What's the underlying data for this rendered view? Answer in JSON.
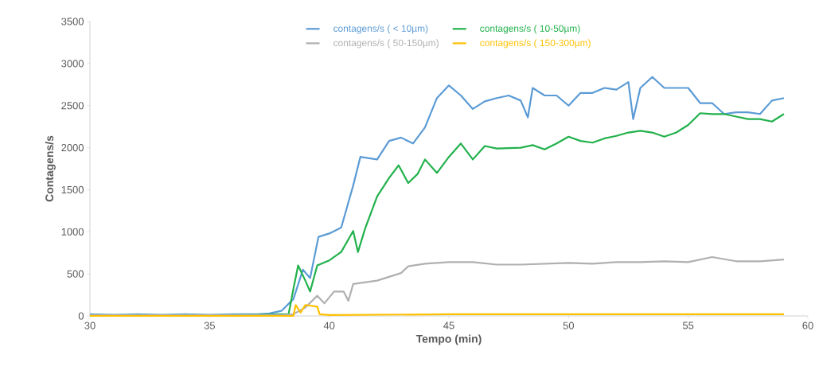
{
  "chart_data": {
    "type": "line",
    "xlabel": "Tempo (min)",
    "ylabel": "Contagens/s",
    "xlim": [
      30,
      60
    ],
    "xticks": [
      30,
      35,
      40,
      45,
      50,
      55,
      60
    ],
    "ylim": [
      0,
      3500
    ],
    "yticks": [
      0,
      500,
      1000,
      1500,
      2000,
      2500,
      3000,
      3500
    ],
    "legend": "top",
    "series": [
      {
        "name": "contagens/s ( < 10µm)",
        "color": "#5b9bd5",
        "x": [
          30,
          31,
          32,
          33,
          34,
          35,
          36,
          37,
          37.5,
          38,
          38.5,
          38.9,
          39.2,
          39.55,
          40,
          40.5,
          41,
          41.3,
          42,
          42.5,
          43,
          43.5,
          44,
          44.5,
          45,
          45.5,
          46,
          46.5,
          47,
          47.5,
          48,
          48.3,
          48.5,
          49,
          49.5,
          50,
          50.5,
          51,
          51.5,
          52,
          52.5,
          52.7,
          53,
          53.5,
          54,
          54.5,
          55,
          55.5,
          56,
          56.5,
          57,
          57.5,
          58,
          58.5,
          59
        ],
        "values": [
          20,
          10,
          20,
          10,
          20,
          10,
          20,
          20,
          30,
          60,
          200,
          550,
          450,
          940,
          980,
          1050,
          1550,
          1890,
          1860,
          2080,
          2120,
          2050,
          2240,
          2590,
          2740,
          2620,
          2460,
          2550,
          2590,
          2620,
          2560,
          2360,
          2710,
          2620,
          2620,
          2500,
          2650,
          2650,
          2710,
          2690,
          2780,
          2340,
          2710,
          2840,
          2710,
          2710,
          2710,
          2530,
          2530,
          2400,
          2420,
          2420,
          2400,
          2560,
          2590
        ]
      },
      {
        "name": "contagens/s ( 10-50µm)",
        "color": "#22b14c",
        "x": [
          30,
          32,
          34,
          36,
          38,
          38.3,
          38.5,
          38.7,
          39,
          39.2,
          39.5,
          40,
          40.5,
          41,
          41.2,
          41.5,
          42,
          42.5,
          42.9,
          43.3,
          43.7,
          44,
          44.5,
          45,
          45.5,
          46,
          46.5,
          47,
          48,
          48.5,
          49,
          49.5,
          50,
          50.5,
          51,
          51.5,
          52,
          52.5,
          53,
          53.5,
          54,
          54.5,
          55,
          55.5,
          56,
          56.5,
          57,
          57.5,
          58,
          58.5,
          59
        ],
        "values": [
          10,
          10,
          10,
          10,
          20,
          20,
          320,
          600,
          420,
          290,
          600,
          660,
          760,
          1010,
          760,
          1040,
          1420,
          1640,
          1790,
          1580,
          1690,
          1860,
          1700,
          1890,
          2050,
          1860,
          2020,
          1990,
          2000,
          2030,
          1980,
          2050,
          2130,
          2080,
          2060,
          2110,
          2140,
          2180,
          2200,
          2180,
          2130,
          2180,
          2270,
          2410,
          2400,
          2400,
          2370,
          2340,
          2340,
          2310,
          2400
        ]
      },
      {
        "name": "contagens/s ( 50-150µm)",
        "color": "#b0b0b3",
        "x": [
          30,
          38,
          38.5,
          39,
          39.5,
          39.8,
          40.2,
          40.6,
          40.8,
          41,
          42,
          43,
          43.3,
          44,
          45,
          46,
          47,
          48,
          49,
          50,
          51,
          52,
          53,
          54,
          55,
          56,
          57,
          58,
          59
        ],
        "values": [
          10,
          10,
          20,
          100,
          240,
          150,
          290,
          290,
          180,
          380,
          420,
          510,
          590,
          620,
          640,
          640,
          610,
          610,
          620,
          630,
          620,
          640,
          640,
          650,
          640,
          700,
          650,
          650,
          670
        ]
      },
      {
        "name": "contagens/s ( 150-300µm)",
        "color": "#ffc000",
        "x": [
          30,
          35,
          38.5,
          38.6,
          38.8,
          39,
          39.5,
          39.6,
          40,
          45,
          50,
          55,
          59
        ],
        "values": [
          0,
          0,
          0,
          130,
          40,
          130,
          110,
          20,
          10,
          20,
          20,
          20,
          20
        ]
      }
    ]
  }
}
